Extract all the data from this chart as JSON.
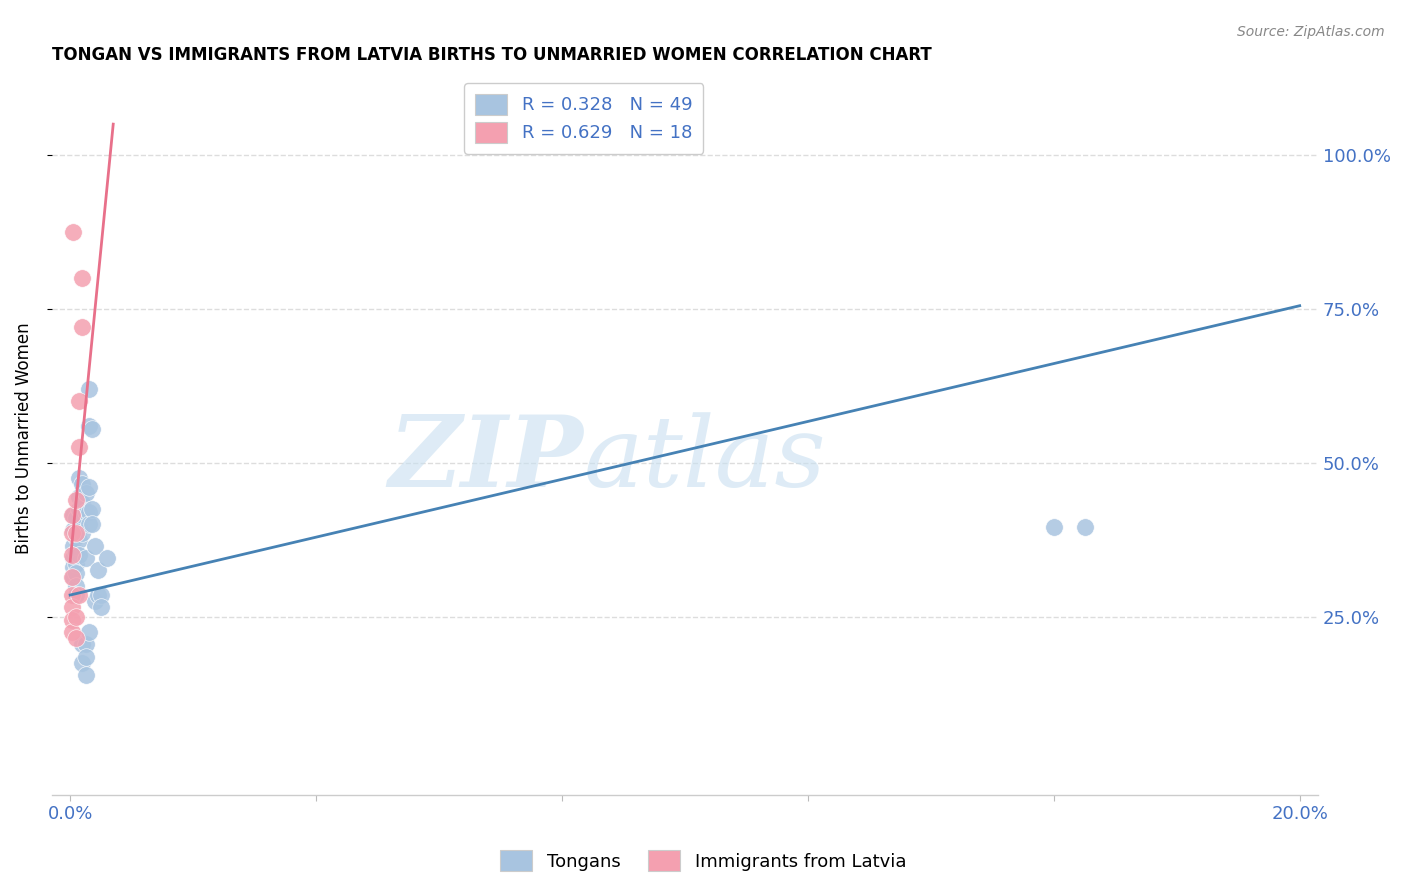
{
  "title": "TONGAN VS IMMIGRANTS FROM LATVIA BIRTHS TO UNMARRIED WOMEN CORRELATION CHART",
  "source": "Source: ZipAtlas.com",
  "ylabel": "Births to Unmarried Women",
  "yticks": [
    "25.0%",
    "50.0%",
    "75.0%",
    "100.0%"
  ],
  "ytick_vals": [
    0.25,
    0.5,
    0.75,
    1.0
  ],
  "legend_blue_r": "R = 0.328",
  "legend_blue_n": "N = 49",
  "legend_pink_r": "R = 0.629",
  "legend_pink_n": "N = 18",
  "legend_label_blue": "Tongans",
  "legend_label_pink": "Immigrants from Latvia",
  "watermark_zip": "ZIP",
  "watermark_atlas": "atlas",
  "blue_color": "#a8c4e0",
  "pink_color": "#f4a0b0",
  "blue_line_color": "#4682B4",
  "pink_line_color": "#e8708a",
  "blue_scatter": [
    [
      0.0005,
      0.415
    ],
    [
      0.0005,
      0.39
    ],
    [
      0.0005,
      0.365
    ],
    [
      0.0005,
      0.345
    ],
    [
      0.0005,
      0.33
    ],
    [
      0.0005,
      0.315
    ],
    [
      0.001,
      0.41
    ],
    [
      0.001,
      0.38
    ],
    [
      0.001,
      0.355
    ],
    [
      0.001,
      0.335
    ],
    [
      0.001,
      0.32
    ],
    [
      0.001,
      0.3
    ],
    [
      0.001,
      0.285
    ],
    [
      0.0015,
      0.475
    ],
    [
      0.0015,
      0.445
    ],
    [
      0.0015,
      0.425
    ],
    [
      0.0015,
      0.395
    ],
    [
      0.0015,
      0.375
    ],
    [
      0.0015,
      0.35
    ],
    [
      0.002,
      0.465
    ],
    [
      0.002,
      0.435
    ],
    [
      0.002,
      0.415
    ],
    [
      0.002,
      0.385
    ],
    [
      0.002,
      0.205
    ],
    [
      0.002,
      0.175
    ],
    [
      0.0025,
      0.45
    ],
    [
      0.0025,
      0.42
    ],
    [
      0.0025,
      0.345
    ],
    [
      0.0025,
      0.205
    ],
    [
      0.0025,
      0.185
    ],
    [
      0.0025,
      0.155
    ],
    [
      0.003,
      0.62
    ],
    [
      0.003,
      0.56
    ],
    [
      0.003,
      0.46
    ],
    [
      0.003,
      0.42
    ],
    [
      0.003,
      0.4
    ],
    [
      0.003,
      0.225
    ],
    [
      0.0035,
      0.555
    ],
    [
      0.0035,
      0.425
    ],
    [
      0.0035,
      0.4
    ],
    [
      0.004,
      0.365
    ],
    [
      0.004,
      0.275
    ],
    [
      0.0045,
      0.325
    ],
    [
      0.0045,
      0.285
    ],
    [
      0.005,
      0.285
    ],
    [
      0.005,
      0.265
    ],
    [
      0.006,
      0.345
    ],
    [
      0.16,
      0.395
    ],
    [
      0.165,
      0.395
    ]
  ],
  "pink_scatter": [
    [
      0.0003,
      0.415
    ],
    [
      0.0003,
      0.385
    ],
    [
      0.0003,
      0.35
    ],
    [
      0.0003,
      0.315
    ],
    [
      0.0003,
      0.285
    ],
    [
      0.0003,
      0.265
    ],
    [
      0.0003,
      0.245
    ],
    [
      0.0003,
      0.225
    ],
    [
      0.001,
      0.44
    ],
    [
      0.001,
      0.385
    ],
    [
      0.001,
      0.25
    ],
    [
      0.001,
      0.215
    ],
    [
      0.0015,
      0.6
    ],
    [
      0.0015,
      0.525
    ],
    [
      0.0015,
      0.285
    ],
    [
      0.002,
      0.8
    ],
    [
      0.002,
      0.72
    ],
    [
      0.0005,
      0.875
    ]
  ],
  "blue_trendline_x": [
    0.0,
    0.2
  ],
  "blue_trendline_y": [
    0.285,
    0.755
  ],
  "pink_trendline_x": [
    0.0,
    0.007
  ],
  "pink_trendline_y": [
    0.34,
    1.05
  ],
  "xlim": [
    -0.003,
    0.203
  ],
  "ylim": [
    -0.04,
    1.12
  ],
  "xtick_positions": [
    0.0,
    0.04,
    0.08,
    0.12,
    0.16,
    0.2
  ],
  "xtick_labels": [
    "0.0%",
    "",
    "",
    "",
    "",
    "20.0%"
  ],
  "background_color": "#ffffff",
  "grid_color": "#dddddd"
}
